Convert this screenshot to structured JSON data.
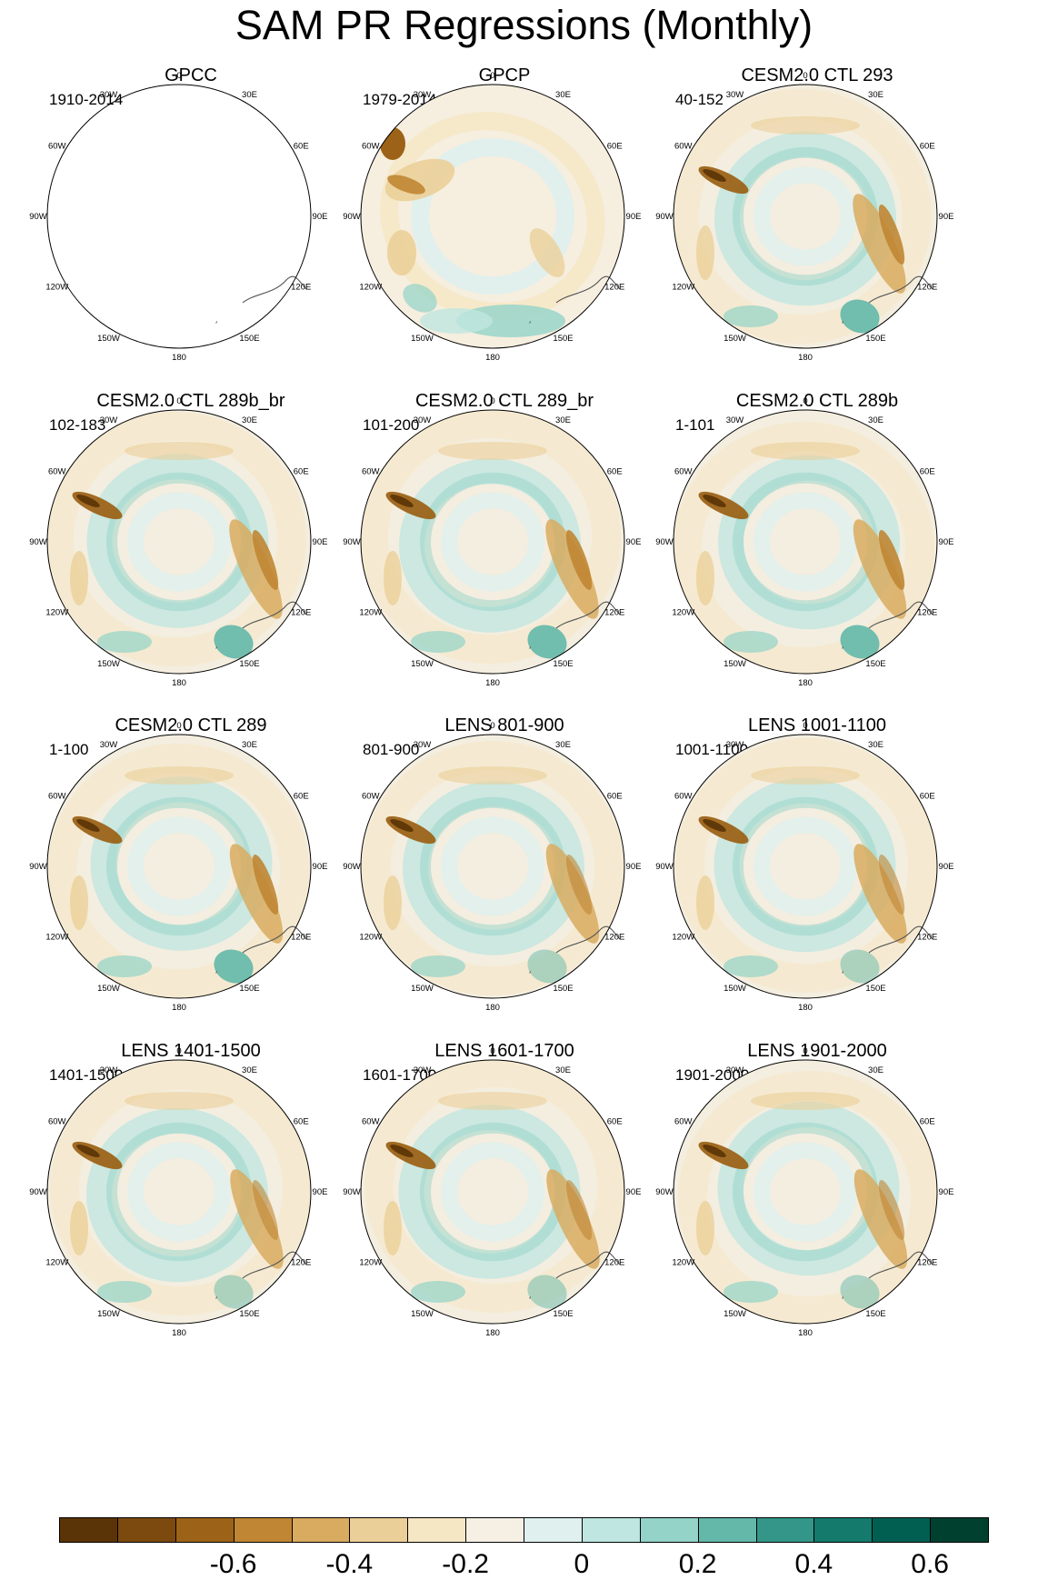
{
  "title": "SAM PR Regressions (Monthly)",
  "longitude_labels": [
    "0",
    "30E",
    "60E",
    "90E",
    "120E",
    "150E",
    "180",
    "150W",
    "120W",
    "90W",
    "60W",
    "30W"
  ],
  "panels": [
    {
      "name": "GPCC",
      "period": "1910-2014",
      "field": "missing"
    },
    {
      "name": "GPCP",
      "period": "1979-2014",
      "field": "noisy"
    },
    {
      "name": "CESM2.0 CTL 293",
      "period": "40-152",
      "field": "model"
    },
    {
      "name": "CESM2.0 CTL 289b_br",
      "period": "102-183",
      "field": "model"
    },
    {
      "name": "CESM2.0 CTL 289_br",
      "period": "101-200",
      "field": "model"
    },
    {
      "name": "CESM2.0 CTL 289b",
      "period": "1-101",
      "field": "model"
    },
    {
      "name": "CESM2.0 CTL 289",
      "period": "1-100",
      "field": "model"
    },
    {
      "name": "LENS 801-900",
      "period": "801-900",
      "field": "lens"
    },
    {
      "name": "LENS 1001-1100",
      "period": "1001-1100",
      "field": "lens"
    },
    {
      "name": "LENS 1401-1500",
      "period": "1401-1500",
      "field": "lens"
    },
    {
      "name": "LENS 1601-1700",
      "period": "1601-1700",
      "field": "lens"
    },
    {
      "name": "LENS 1901-2000",
      "period": "1901-2000",
      "field": "lens"
    }
  ],
  "colorbar": {
    "colors": [
      "#5a3306",
      "#7c4a0f",
      "#9c6318",
      "#c08633",
      "#d8ab60",
      "#ebcf98",
      "#f6e7c4",
      "#f5f0e3",
      "#dff0ee",
      "#bfe6e0",
      "#93d3c8",
      "#63b8aa",
      "#339688",
      "#137a6c",
      "#015f52",
      "#00402f"
    ],
    "labels": [
      "-0.6",
      "-0.4",
      "-0.2",
      "0",
      "0.2",
      "0.4",
      "0.6"
    ]
  }
}
